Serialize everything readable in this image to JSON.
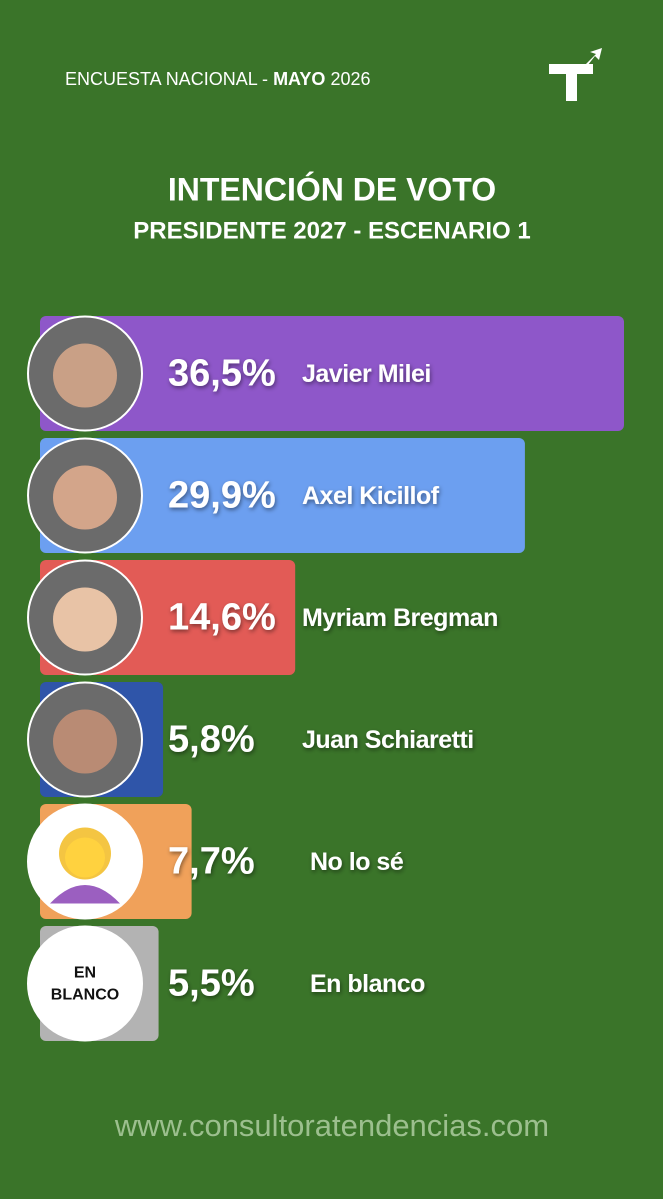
{
  "header": {
    "survey": "ENCUESTA NACIONAL -",
    "month": "MAYO",
    "year": "2026"
  },
  "chart_data": {
    "type": "bar",
    "orientation": "horizontal",
    "title": "INTENCIÓN DE VOTO",
    "subtitle": "PRESIDENTE 2027 - ESCENARIO 1",
    "categories": [
      "Javier Milei",
      "Axel Kicillof",
      "Myriam Bregman",
      "Juan Schiaretti",
      "No lo sé",
      "En blanco"
    ],
    "values": [
      36.5,
      29.9,
      14.6,
      5.8,
      7.7,
      5.5
    ],
    "value_labels": [
      "36,5%",
      "29,9%",
      "14,6%",
      "5,8%",
      "7,7%",
      "5,5%"
    ],
    "colors": [
      "#8e57c9",
      "#6c9ff0",
      "#e25b56",
      "#2f55a9",
      "#f0a15a",
      "#b3b3b3"
    ]
  },
  "blank_badge": [
    "EN",
    "BLANCO"
  ],
  "footer": "www.consultoratendencias.com"
}
